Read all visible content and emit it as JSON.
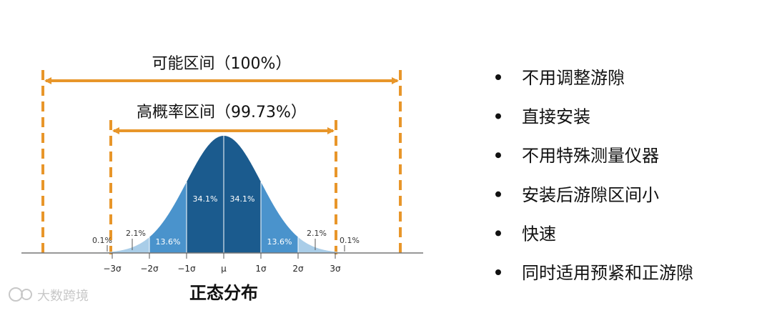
{
  "ranges": [
    {
      "label": "可能区间（100%）"
    },
    {
      "label": "高概率区间（99.73%）"
    }
  ],
  "curve": {
    "title": "正态分布",
    "axis_labels": [
      "−3σ",
      "−2σ",
      "−1σ",
      "μ",
      "1σ",
      "2σ",
      "3σ"
    ],
    "region_labels": [
      "0.1%",
      "2.1%",
      "13.6%",
      "34.1%",
      "34.1%",
      "13.6%",
      "2.1%",
      "0.1%"
    ]
  },
  "bullets": [
    "不用调整游隙",
    "直接安装",
    "不用特殊测量仪器",
    "安装后游隙区间小",
    "快速",
    "同时适用预紧和正游隙"
  ],
  "watermark": "大数跨境"
}
